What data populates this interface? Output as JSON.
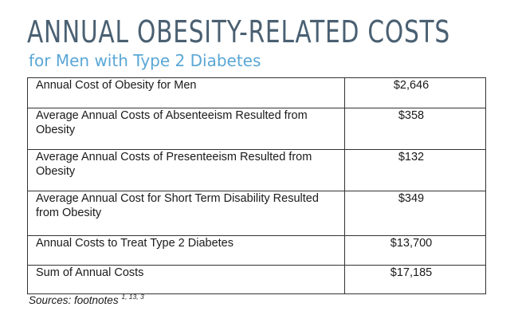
{
  "chart_data": {
    "type": "table",
    "title": "ANNUAL OBESITY-RELATED COSTS",
    "subtitle": "for Men with Type 2 Diabetes",
    "rows": [
      {
        "label": "Annual Cost of Obesity for Men",
        "value": "$2,646"
      },
      {
        "label": "Average Annual Costs of Absenteeism Resulted from Obesity",
        "value": "$358"
      },
      {
        "label": "Average Annual Costs of Presenteeism Resulted from Obesity",
        "value": "$132"
      },
      {
        "label": "Average Annual Cost for Short Term Disability Resulted from Obesity",
        "value": "$349"
      },
      {
        "label": "Annual Costs to Treat Type 2 Diabetes",
        "value": "$13,700"
      }
    ],
    "total": {
      "label": "Sum of Annual Costs",
      "value": "$17,185"
    },
    "sources": {
      "label": "Sources: footnotes",
      "refs": "1, 13, 3"
    }
  },
  "colors": {
    "title": "#4a6072",
    "subtitle": "#5aa7d6",
    "total_divider": "#4a6072",
    "border": "#333333"
  }
}
